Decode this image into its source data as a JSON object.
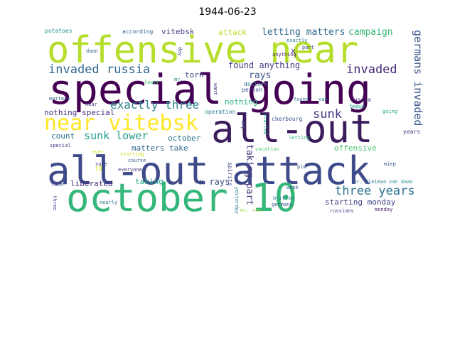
{
  "figure": {
    "title": "1944-06-23"
  },
  "wordcloud": {
    "words": [
      {
        "text": "offensive near",
        "color": "#b5de2b"
      },
      {
        "text": "special going",
        "color": "#440154"
      },
      {
        "text": "all-out",
        "color": "#3b1c5c"
      },
      {
        "text": "all-out attack",
        "color": "#3e4a89"
      },
      {
        "text": "october 10",
        "color": "#35b779"
      },
      {
        "text": "near vitebsk",
        "color": "#fde725"
      },
      {
        "text": "invaded russia",
        "color": "#31688e"
      },
      {
        "text": "exactly three",
        "color": "#26828e"
      },
      {
        "text": "sunk lower",
        "color": "#1f9e89"
      },
      {
        "text": "invaded",
        "color": "#482878"
      },
      {
        "text": "sunk",
        "color": "#443983"
      },
      {
        "text": "germans invaded",
        "color": "#39568c"
      },
      {
        "text": "three years",
        "color": "#2c728e"
      },
      {
        "text": "letting matters",
        "color": "#31688e"
      },
      {
        "text": "campaign",
        "color": "#35b779"
      },
      {
        "text": "attack",
        "color": "#b5de2b"
      },
      {
        "text": "vitebsk",
        "color": "#414487"
      },
      {
        "text": "potatoes",
        "color": "#21918c"
      },
      {
        "text": "according",
        "color": "#33638d"
      },
      {
        "text": "nothing special",
        "color": "#472d7b"
      },
      {
        "text": "found anything",
        "color": "#453781"
      },
      {
        "text": "rays",
        "color": "#3b528b"
      },
      {
        "text": "nothing",
        "color": "#2db27d"
      },
      {
        "text": "torn",
        "color": "#404688"
      },
      {
        "text": "x rays",
        "color": "#3e4a89"
      },
      {
        "text": "matters take",
        "color": "#31688e"
      },
      {
        "text": "october",
        "color": "#2a788e"
      },
      {
        "text": "count",
        "color": "#2c728e"
      },
      {
        "text": "liberated",
        "color": "#472f7d"
      },
      {
        "text": "taking",
        "color": "#20a386"
      },
      {
        "text": "taking part",
        "color": "#46337f"
      },
      {
        "text": "offensive",
        "color": "#4ac16d"
      },
      {
        "text": "starting monday",
        "color": "#414487"
      },
      {
        "text": "10",
        "color": "#d8e219"
      },
      {
        "text": "special",
        "color": "#46327e"
      },
      {
        "text": "starting",
        "color": "#c2df23"
      },
      {
        "text": "doctors",
        "color": "#2c728e"
      },
      {
        "text": "person",
        "color": "#3b528b"
      },
      {
        "text": "russia",
        "color": "#472d7b"
      },
      {
        "text": "begun",
        "color": "#1fa187"
      },
      {
        "text": "going",
        "color": "#22a884"
      },
      {
        "text": "years",
        "color": "#433e85"
      },
      {
        "text": "found",
        "color": "#31688e"
      },
      {
        "text": "van",
        "color": "#277f8e"
      },
      {
        "text": "cherbourg",
        "color": "#39568c"
      },
      {
        "text": "letting",
        "color": "#2db27d"
      },
      {
        "text": "operation",
        "color": "#2a788e"
      },
      {
        "text": "vacation",
        "color": "#52c569"
      },
      {
        "text": "pim",
        "color": "#3b528b"
      },
      {
        "text": "exactly",
        "color": "#2a788e"
      },
      {
        "text": "part",
        "color": "#414487"
      },
      {
        "text": "anything",
        "color": "#472878"
      },
      {
        "text": "daan",
        "color": "#33638d"
      },
      {
        "text": "day",
        "color": "#3e4a89"
      },
      {
        "text": "mr.",
        "color": "#26828e"
      },
      {
        "text": "lower",
        "color": "#3fbc73"
      },
      {
        "text": "want",
        "color": "#453882"
      },
      {
        "text": "matters",
        "color": "#33638d"
      },
      {
        "text": "near",
        "color": "#46337f"
      },
      {
        "text": "everyone",
        "color": "#472d7b"
      },
      {
        "text": "course",
        "color": "#38588c"
      },
      {
        "text": "ever",
        "color": "#d0e11c"
      },
      {
        "text": "sure",
        "color": "#463480"
      },
      {
        "text": "take",
        "color": "#3e4a89"
      },
      {
        "text": "nearly",
        "color": "#2c728e"
      },
      {
        "text": "three",
        "color": "#414487"
      },
      {
        "text": "week",
        "color": "#38598c"
      },
      {
        "text": "british",
        "color": "#2c728e"
      },
      {
        "text": "germans",
        "color": "#3a548c"
      },
      {
        "text": "mr. van",
        "color": "#95d840"
      },
      {
        "text": "russians",
        "color": "#433e85"
      },
      {
        "text": "monday",
        "color": "#482677"
      },
      {
        "text": "mr. kleiman",
        "color": "#2a788e"
      },
      {
        "text": "van daan",
        "color": "#21908d"
      },
      {
        "text": "miep",
        "color": "#3b528b"
      },
      {
        "text": "yesterday",
        "color": "#26828e"
      },
      {
        "text": "spirits",
        "color": "#3f4788"
      },
      {
        "text": "started",
        "color": "#1fa187"
      },
      {
        "text": "bep",
        "color": "#3d4e8a"
      },
      {
        "text": "x",
        "color": "#46327e"
      }
    ]
  }
}
